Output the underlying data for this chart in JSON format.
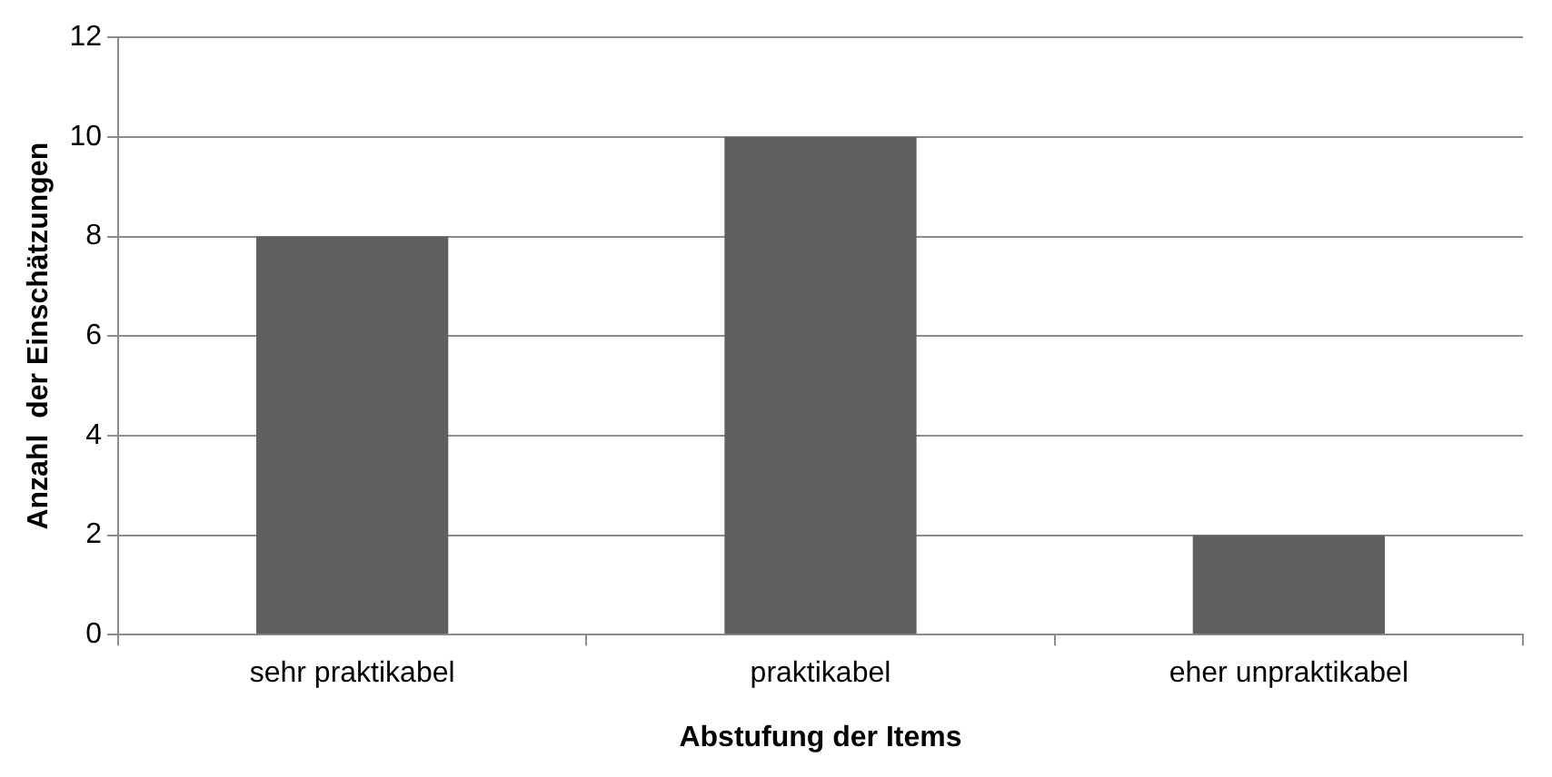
{
  "chart_data": {
    "type": "bar",
    "xlabel": "Abstufung der Items",
    "ylabel": "Anzahl  der Einschätzungen",
    "categories": [
      "sehr praktikabel",
      "praktikabel",
      "eher unpraktikabel"
    ],
    "values": [
      8,
      10,
      2
    ],
    "color": "#606060",
    "ylim": [
      0,
      12
    ],
    "yticks": [
      0,
      2,
      4,
      6,
      8,
      10,
      12
    ],
    "grid": "y",
    "legend": false
  }
}
